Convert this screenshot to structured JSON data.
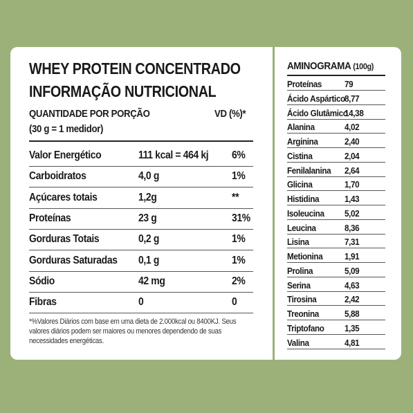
{
  "nutrition": {
    "title": "WHEY PROTEIN CONCENTRADO",
    "subtitle": "INFORMAÇÃO NUTRICIONAL",
    "serving_label": "QUANTIDADE POR PORÇÃO",
    "vd_header": "VD (%)*",
    "serving_size": "(30 g = 1 medidor)",
    "rows": [
      [
        "Valor Energético",
        "111 kcal = 464 kj",
        "6%"
      ],
      [
        "Carboidratos",
        "4,0 g",
        "1%"
      ],
      [
        "Açúcares totais",
        "1,2g",
        "**"
      ],
      [
        "Proteínas",
        "23 g",
        "31%"
      ],
      [
        "Gorduras Totais",
        "0,2 g",
        "1%"
      ],
      [
        "Gorduras Saturadas",
        "0,1 g",
        "1%"
      ],
      [
        "Sódio",
        "42 mg",
        "2%"
      ],
      [
        "Fibras",
        "0",
        "0"
      ]
    ],
    "footnote": "*%Valores Diários com base em uma dieta de 2.000kcal ou 8400KJ. Seus valores diários podem ser maiores ou menores dependendo de suas necessidades energéticas."
  },
  "aminogram": {
    "title": "AMINOGRAMA",
    "unit": "(100g)",
    "rows": [
      [
        "Proteínas",
        "79"
      ],
      [
        "Ácido Aspártico",
        "8,77"
      ],
      [
        "Ácido Glutâmico",
        "14,38"
      ],
      [
        "Alanina",
        "4,02"
      ],
      [
        "Arginina",
        "2,40"
      ],
      [
        "Cistina",
        "2,04"
      ],
      [
        "Fenilalanina",
        "2,64"
      ],
      [
        "Glicina",
        "1,70"
      ],
      [
        "Histidina",
        "1,43"
      ],
      [
        "Isoleucina",
        "5,02"
      ],
      [
        "Leucina",
        "8,36"
      ],
      [
        "Lisina",
        "7,31"
      ],
      [
        "Metionina",
        "1,91"
      ],
      [
        "Prolina",
        "5,09"
      ],
      [
        "Serina",
        "4,63"
      ],
      [
        "Tirosina",
        "2,42"
      ],
      [
        "Treonina",
        "5,88"
      ],
      [
        "Triptofano",
        "1,35"
      ],
      [
        "Valina",
        "4,81"
      ]
    ]
  }
}
